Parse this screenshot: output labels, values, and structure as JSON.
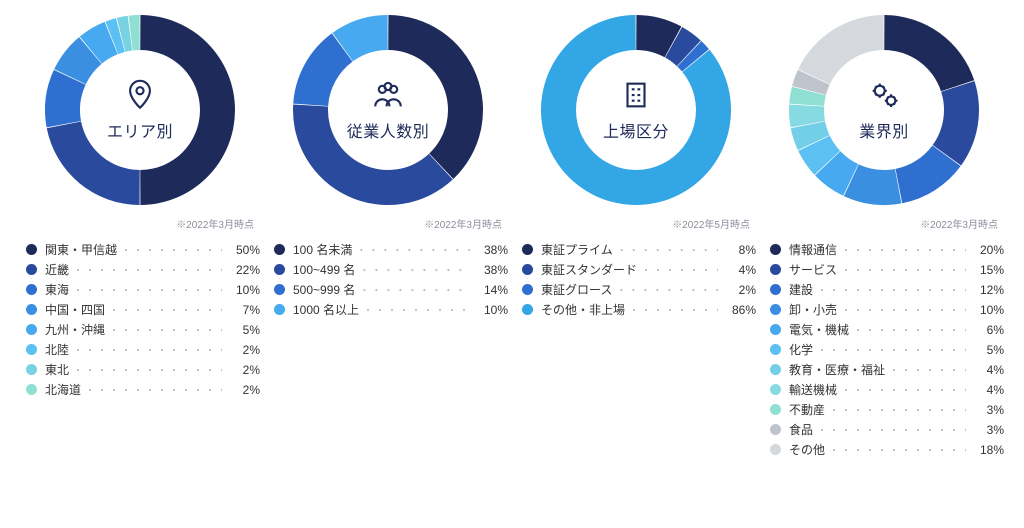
{
  "background_color": "#ffffff",
  "donut": {
    "outer_r": 95,
    "inner_r": 60,
    "gap_deg": 0.5
  },
  "dot_fill": "・・・・・・・・・・・・・・・・・・・・・・",
  "charts": [
    {
      "title": "エリア別",
      "icon": "pin",
      "footnote": "※2022年3月時点",
      "items": [
        {
          "label": "関東・甲信越",
          "pct": 50,
          "color": "#1e2a5a"
        },
        {
          "label": "近畿",
          "pct": 22,
          "color": "#2a4a9e"
        },
        {
          "label": "東海",
          "pct": 10,
          "color": "#2f6fcf"
        },
        {
          "label": "中国・四国",
          "pct": 7,
          "color": "#3a8fe0"
        },
        {
          "label": "九州・沖縄",
          "pct": 5,
          "color": "#47a9ef"
        },
        {
          "label": "北陸",
          "pct": 2,
          "color": "#5cc0f2"
        },
        {
          "label": "東北",
          "pct": 2,
          "color": "#79d2e1"
        },
        {
          "label": "北海道",
          "pct": 2,
          "color": "#8fe0d2"
        }
      ]
    },
    {
      "title": "従業人数別",
      "icon": "people",
      "footnote": "※2022年3月時点",
      "items": [
        {
          "label": "100 名未満",
          "pct": 38,
          "color": "#1e2a5a"
        },
        {
          "label": "100~499 名",
          "pct": 38,
          "color": "#2a4a9e"
        },
        {
          "label": "500~999 名",
          "pct": 14,
          "color": "#2f6fcf"
        },
        {
          "label": "1000 名以上",
          "pct": 10,
          "color": "#47a9ef"
        }
      ]
    },
    {
      "title": "上場区分",
      "icon": "building",
      "footnote": "※2022年5月時点",
      "items": [
        {
          "label": "東証プライム",
          "pct": 8,
          "color": "#1e2a5a"
        },
        {
          "label": "東証スタンダード",
          "pct": 4,
          "color": "#2a4a9e"
        },
        {
          "label": "東証グロース",
          "pct": 2,
          "color": "#2f6fcf"
        },
        {
          "label": "その他・非上場",
          "pct": 86,
          "color": "#33a6e6"
        }
      ]
    },
    {
      "title": "業界別",
      "icon": "gears",
      "footnote": "※2022年3月時点",
      "items": [
        {
          "label": "情報通信",
          "pct": 20,
          "color": "#1e2a5a"
        },
        {
          "label": "サービス",
          "pct": 15,
          "color": "#2a4a9e"
        },
        {
          "label": "建設",
          "pct": 12,
          "color": "#2f6fcf"
        },
        {
          "label": "卸・小売",
          "pct": 10,
          "color": "#3a8fe0"
        },
        {
          "label": "電気・機械",
          "pct": 6,
          "color": "#47a9ef"
        },
        {
          "label": "化学",
          "pct": 5,
          "color": "#5cc0f2"
        },
        {
          "label": "教育・医療・福祉",
          "pct": 4,
          "color": "#73cfe8"
        },
        {
          "label": "輸送機械",
          "pct": 4,
          "color": "#86dbe2"
        },
        {
          "label": "不動産",
          "pct": 3,
          "color": "#8fe0d2"
        },
        {
          "label": "食品",
          "pct": 3,
          "color": "#bfc4cc"
        },
        {
          "label": "その他",
          "pct": 18,
          "color": "#d5d9de"
        }
      ]
    }
  ]
}
